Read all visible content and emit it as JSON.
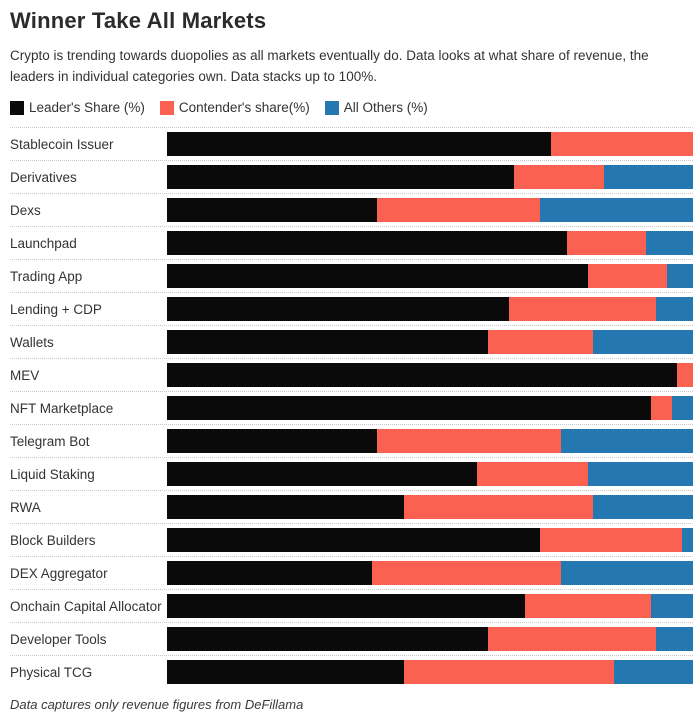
{
  "header": {
    "title": "Winner Take All Markets",
    "subtitle": "Crypto is trending towards duopolies as all markets eventually do. Data looks at what share of revenue, the leaders in individual categories own. Data stacks up to 100%."
  },
  "legend": [
    {
      "label": "Leader's Share (%)",
      "color": "#0a0a0a"
    },
    {
      "label": "Contender's share(%)",
      "color": "#fa6150"
    },
    {
      "label": "All Others (%)",
      "color": "#2577b2"
    }
  ],
  "chart_data": {
    "type": "bar",
    "stacked": true,
    "orientation": "horizontal",
    "unit": "%",
    "xlim": [
      0,
      100
    ],
    "grid": false,
    "legend_position": "top",
    "title": "Winner Take All Markets",
    "xlabel": "",
    "ylabel": "",
    "categories": [
      "Stablecoin Issuer",
      "Derivatives",
      "Dexs",
      "Launchpad",
      "Trading App",
      "Lending + CDP",
      "Wallets",
      "MEV",
      "NFT Marketplace",
      "Telegram Bot",
      "Liquid Staking",
      "RWA",
      "Block Builders",
      "DEX Aggregator",
      "Onchain Capital Allocator",
      "Developer Tools",
      "Physical TCG"
    ],
    "series": [
      {
        "name": "Leader's Share (%)",
        "color": "#0a0a0a",
        "values": [
          73,
          66,
          40,
          76,
          80,
          65,
          61,
          97,
          92,
          40,
          59,
          45,
          71,
          39,
          68,
          61,
          45
        ]
      },
      {
        "name": "Contender's share(%)",
        "color": "#fa6150",
        "values": [
          27,
          17,
          31,
          15,
          15,
          28,
          20,
          3,
          4,
          35,
          21,
          36,
          27,
          36,
          24,
          32,
          40
        ]
      },
      {
        "name": "All Others (%)",
        "color": "#2577b2",
        "values": [
          0,
          17,
          29,
          9,
          5,
          7,
          19,
          0,
          4,
          25,
          20,
          19,
          2,
          25,
          8,
          7,
          15
        ]
      }
    ]
  },
  "footer": {
    "note": "Data captures only revenue figures from DeFillama"
  }
}
